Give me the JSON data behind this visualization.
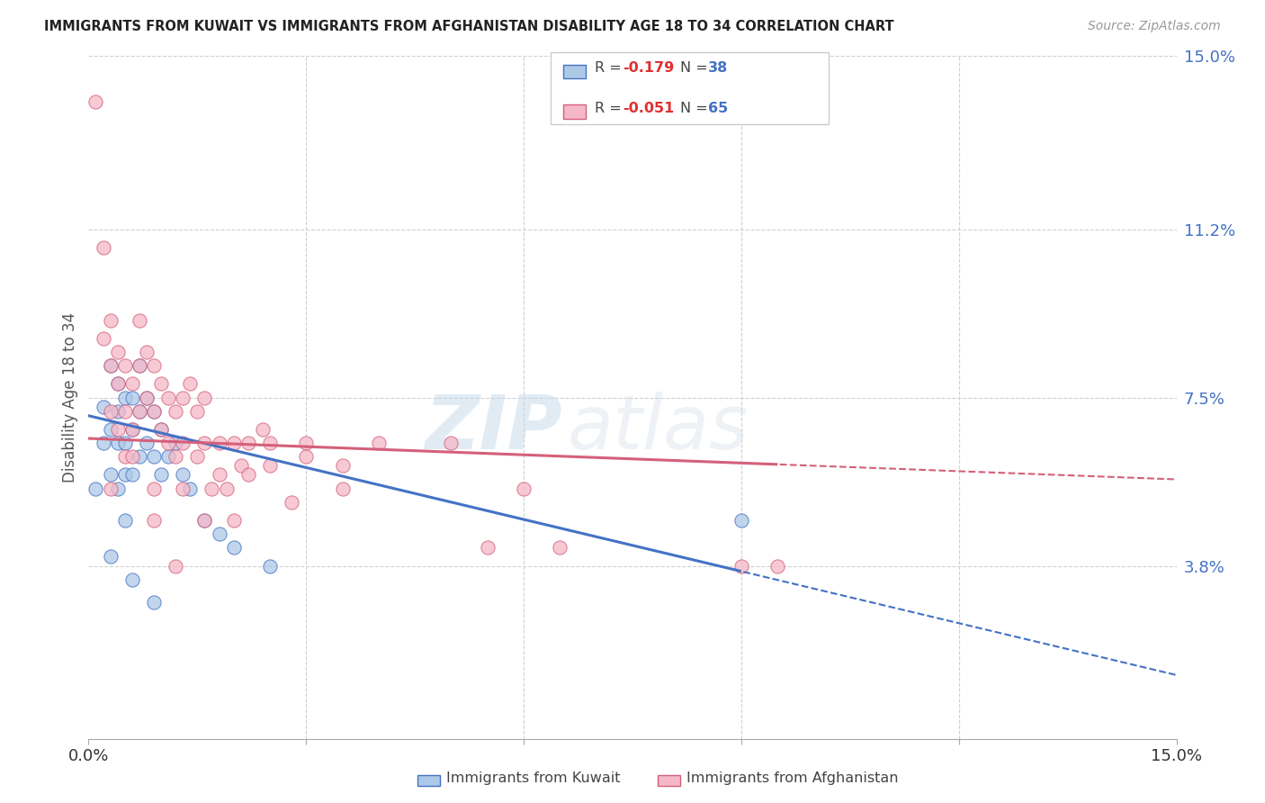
{
  "title": "IMMIGRANTS FROM KUWAIT VS IMMIGRANTS FROM AFGHANISTAN DISABILITY AGE 18 TO 34 CORRELATION CHART",
  "source": "Source: ZipAtlas.com",
  "ylabel": "Disability Age 18 to 34",
  "xlim": [
    0.0,
    0.15
  ],
  "ylim": [
    0.0,
    0.15
  ],
  "yticks_right": [
    0.0,
    0.038,
    0.075,
    0.112,
    0.15
  ],
  "ytick_labels_right": [
    "",
    "3.8%",
    "7.5%",
    "11.2%",
    "15.0%"
  ],
  "xtick_labels": [
    "0.0%",
    "",
    "",
    "",
    "",
    "15.0%"
  ],
  "color_kuwait": "#adc9e8",
  "color_afghanistan": "#f5b8c8",
  "color_kuwait_line": "#4472c4",
  "color_afghanistan_line": "#d4607a",
  "watermark_zip": "ZIP",
  "watermark_atlas": "atlas",
  "kuwait_scatter_x": [
    0.001,
    0.002,
    0.002,
    0.003,
    0.003,
    0.003,
    0.004,
    0.004,
    0.004,
    0.004,
    0.005,
    0.005,
    0.005,
    0.005,
    0.006,
    0.006,
    0.006,
    0.007,
    0.007,
    0.007,
    0.008,
    0.008,
    0.009,
    0.009,
    0.01,
    0.01,
    0.011,
    0.012,
    0.013,
    0.014,
    0.016,
    0.018,
    0.02,
    0.025,
    0.003,
    0.006,
    0.009,
    0.09
  ],
  "kuwait_scatter_y": [
    0.055,
    0.073,
    0.065,
    0.082,
    0.068,
    0.058,
    0.078,
    0.072,
    0.065,
    0.055,
    0.075,
    0.065,
    0.058,
    0.048,
    0.075,
    0.068,
    0.058,
    0.082,
    0.072,
    0.062,
    0.075,
    0.065,
    0.072,
    0.062,
    0.068,
    0.058,
    0.062,
    0.065,
    0.058,
    0.055,
    0.048,
    0.045,
    0.042,
    0.038,
    0.04,
    0.035,
    0.03,
    0.048
  ],
  "afghanistan_scatter_x": [
    0.001,
    0.002,
    0.002,
    0.003,
    0.003,
    0.003,
    0.004,
    0.004,
    0.004,
    0.005,
    0.005,
    0.005,
    0.006,
    0.006,
    0.007,
    0.007,
    0.007,
    0.008,
    0.008,
    0.009,
    0.009,
    0.01,
    0.01,
    0.011,
    0.011,
    0.012,
    0.012,
    0.013,
    0.013,
    0.014,
    0.015,
    0.015,
    0.016,
    0.016,
    0.017,
    0.018,
    0.019,
    0.02,
    0.021,
    0.022,
    0.024,
    0.025,
    0.03,
    0.035,
    0.04,
    0.05,
    0.055,
    0.06,
    0.065,
    0.009,
    0.013,
    0.016,
    0.018,
    0.02,
    0.022,
    0.025,
    0.028,
    0.03,
    0.035,
    0.09,
    0.095,
    0.003,
    0.006,
    0.009,
    0.012
  ],
  "afghanistan_scatter_y": [
    0.14,
    0.108,
    0.088,
    0.092,
    0.082,
    0.072,
    0.085,
    0.078,
    0.068,
    0.082,
    0.072,
    0.062,
    0.078,
    0.068,
    0.092,
    0.082,
    0.072,
    0.085,
    0.075,
    0.082,
    0.072,
    0.078,
    0.068,
    0.075,
    0.065,
    0.072,
    0.062,
    0.075,
    0.065,
    0.078,
    0.072,
    0.062,
    0.075,
    0.065,
    0.055,
    0.065,
    0.055,
    0.065,
    0.06,
    0.065,
    0.068,
    0.065,
    0.065,
    0.06,
    0.065,
    0.065,
    0.042,
    0.055,
    0.042,
    0.055,
    0.055,
    0.048,
    0.058,
    0.048,
    0.058,
    0.06,
    0.052,
    0.062,
    0.055,
    0.038,
    0.038,
    0.055,
    0.062,
    0.048,
    0.038
  ],
  "regression_kuwait": {
    "slope": -0.38,
    "intercept": 0.071
  },
  "regression_afghanistan": {
    "slope": -0.06,
    "intercept": 0.066
  }
}
